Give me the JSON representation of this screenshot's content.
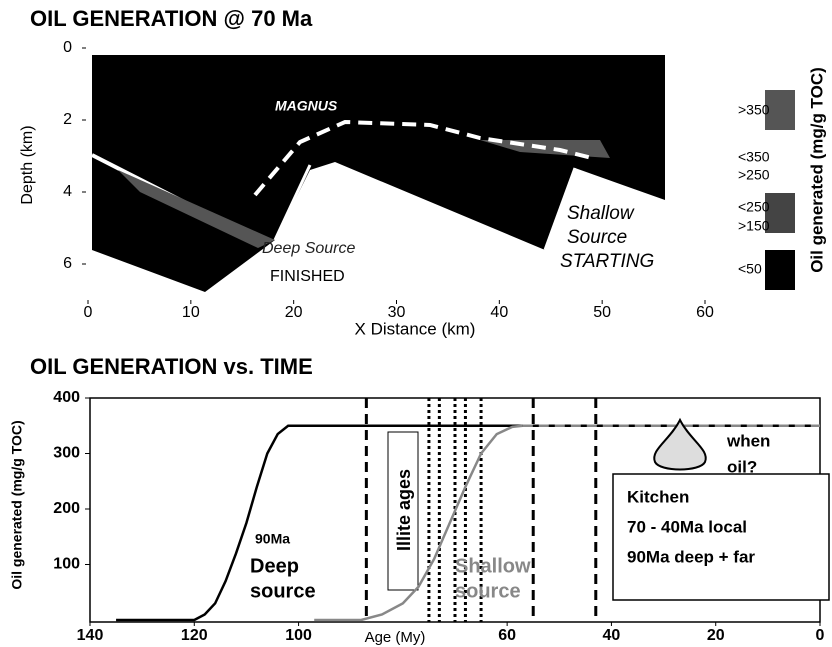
{
  "chart_data": [
    {
      "type": "section",
      "title": "OIL GENERATION @ 70 Ma",
      "x_label": "X Distance (km)",
      "y_label": "Depth (km)",
      "xlim": [
        0,
        60
      ],
      "xticks": [
        0,
        10,
        20,
        30,
        40,
        50,
        60
      ],
      "ylim": [
        0,
        7
      ],
      "yticks": [
        0,
        2,
        4,
        6
      ],
      "annotations": {
        "magnus": "MAGNUS",
        "deep": "Deep Source",
        "finished": "FINISHED",
        "shallow": [
          "Shallow",
          "Source",
          "STARTING"
        ]
      },
      "legend": {
        "title": "Oil generated (mg/g TOC)",
        "items": [
          {
            "label": [
              ">350"
            ],
            "color": "#555555"
          },
          {
            "label": [
              "<350",
              ">250"
            ],
            "color": "#ffffff"
          },
          {
            "label": [
              "<250",
              ">150"
            ],
            "color": "#444444"
          },
          {
            "label": [
              "<50"
            ],
            "color": "#000000"
          }
        ]
      }
    },
    {
      "type": "line",
      "title": "OIL GENERATION vs. TIME",
      "x_label": "Age (My)",
      "y_label": "Oil generated (mg/g TOC)",
      "xlim": [
        140,
        0
      ],
      "xticks": [
        140,
        120,
        100,
        60,
        40,
        20,
        0
      ],
      "ylim": [
        0,
        400
      ],
      "yticks": [
        100,
        200,
        300,
        400
      ],
      "series": [
        {
          "color": "#000000",
          "style": "solid",
          "x": [
            135,
            125,
            120,
            118,
            116,
            114,
            112,
            110,
            108,
            106,
            104,
            102,
            90,
            60,
            40,
            20,
            0
          ],
          "values": [
            0,
            0,
            0,
            10,
            30,
            70,
            120,
            175,
            240,
            300,
            335,
            350,
            350,
            350,
            350,
            350,
            350
          ]
        },
        {
          "color": "#888888",
          "style": "solid",
          "x": [
            97,
            88,
            84,
            80,
            77,
            74,
            71,
            68,
            65,
            62,
            59,
            57
          ],
          "values": [
            0,
            0,
            10,
            30,
            60,
            110,
            175,
            240,
            300,
            335,
            348,
            350
          ]
        },
        {
          "color": "#888888",
          "style": "dashed",
          "x": [
            57,
            0
          ],
          "values": [
            350,
            350
          ]
        }
      ],
      "markers": [
        {
          "x": 87,
          "style": "dashed"
        },
        {
          "x": 75,
          "style": "dotted"
        },
        {
          "x": 73,
          "style": "dotted"
        },
        {
          "x": 70,
          "style": "dotted"
        },
        {
          "x": 68,
          "style": "dotted"
        },
        {
          "x": 65,
          "style": "dotted"
        },
        {
          "x": 55,
          "style": "dashed"
        },
        {
          "x": 43,
          "style": "dashed"
        }
      ],
      "annotations": {
        "age": "90Ma",
        "deep": [
          "Deep",
          "source"
        ],
        "illite": "Illite ages",
        "shallow": [
          "Shallow",
          "source"
        ],
        "when": [
          "when",
          "oil?"
        ],
        "kitchen": [
          "Kitchen",
          "70 - 40Ma  local",
          "90Ma deep + far"
        ]
      }
    }
  ]
}
